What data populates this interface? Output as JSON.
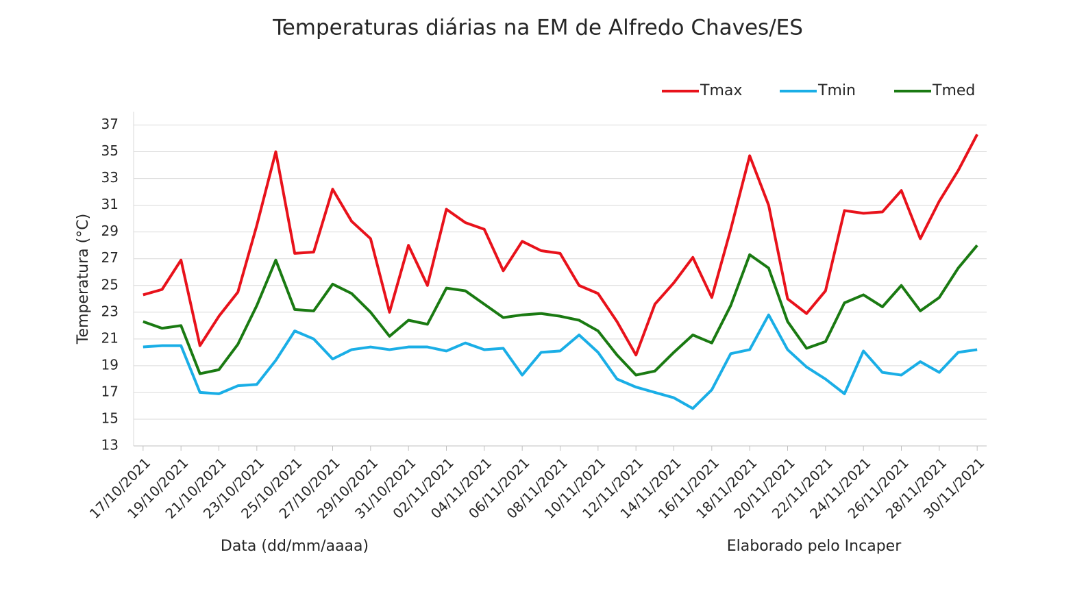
{
  "chart_data": {
    "type": "line",
    "title": "Temperaturas diárias na EM de Alfredo Chaves/ES",
    "ylabel": "Temperatura (°C)",
    "xlabel": "Data (dd/mm/aaaa)",
    "annotation": "Elaborado pelo Incaper",
    "categories": [
      "17/10/2021",
      null,
      "19/10/2021",
      null,
      "21/10/2021",
      null,
      "23/10/2021",
      null,
      "25/10/2021",
      null,
      "27/10/2021",
      null,
      "29/10/2021",
      null,
      "31/10/2021",
      null,
      "02/11/2021",
      null,
      "04/11/2021",
      null,
      "06/11/2021",
      null,
      "08/11/2021",
      null,
      "10/11/2021",
      null,
      "12/11/2021",
      null,
      "14/11/2021",
      null,
      "16/11/2021",
      null,
      "18/11/2021",
      null,
      "20/11/2021",
      null,
      "22/11/2021",
      null,
      "24/11/2021",
      null,
      "26/11/2021",
      null,
      "28/11/2021",
      null,
      "30/11/2021"
    ],
    "series": [
      {
        "name": "Tmax",
        "color": "#e8121b",
        "values": [
          24.3,
          24.7,
          26.9,
          20.5,
          22.7,
          24.5,
          29.5,
          35.0,
          27.4,
          27.5,
          32.2,
          29.8,
          28.5,
          23.0,
          28.0,
          25.0,
          30.7,
          29.7,
          29.2,
          26.1,
          28.3,
          27.6,
          27.4,
          25.0,
          24.4,
          22.3,
          19.8,
          23.6,
          25.2,
          27.1,
          24.1,
          29.2,
          34.7,
          31.0,
          24.0,
          22.9,
          24.6,
          30.6,
          30.4,
          30.5,
          32.1,
          28.5,
          31.3,
          33.6,
          36.3
        ]
      },
      {
        "name": "Tmin",
        "color": "#1aaee6",
        "values": [
          20.4,
          20.5,
          20.5,
          17.0,
          16.9,
          17.5,
          17.6,
          19.4,
          21.6,
          21.0,
          19.5,
          20.2,
          20.4,
          20.2,
          20.4,
          20.4,
          20.1,
          20.7,
          20.2,
          20.3,
          18.3,
          20.0,
          20.1,
          21.3,
          20.0,
          18.0,
          17.4,
          17.0,
          16.6,
          15.8,
          17.2,
          19.9,
          20.2,
          22.8,
          20.2,
          18.9,
          18.0,
          16.9,
          20.1,
          18.5,
          18.3,
          19.3,
          18.5,
          20.0,
          20.2
        ]
      },
      {
        "name": "Tmed",
        "color": "#1a7a12",
        "values": [
          22.3,
          21.8,
          22.0,
          18.4,
          18.7,
          20.6,
          23.5,
          26.9,
          23.2,
          23.1,
          25.1,
          24.4,
          23.0,
          21.2,
          22.4,
          22.1,
          24.8,
          24.6,
          23.6,
          22.6,
          22.8,
          22.9,
          22.7,
          22.4,
          21.6,
          19.8,
          18.3,
          18.6,
          20.0,
          21.3,
          20.7,
          23.5,
          27.3,
          26.3,
          22.3,
          20.3,
          20.8,
          23.7,
          24.3,
          23.4,
          25.0,
          23.1,
          24.1,
          26.3,
          28.0
        ]
      }
    ],
    "ylim": [
      13,
      38
    ],
    "yticks": [
      13,
      15,
      17,
      19,
      21,
      23,
      25,
      27,
      29,
      31,
      33,
      35,
      37
    ],
    "grid": true,
    "legend": "top-right"
  }
}
